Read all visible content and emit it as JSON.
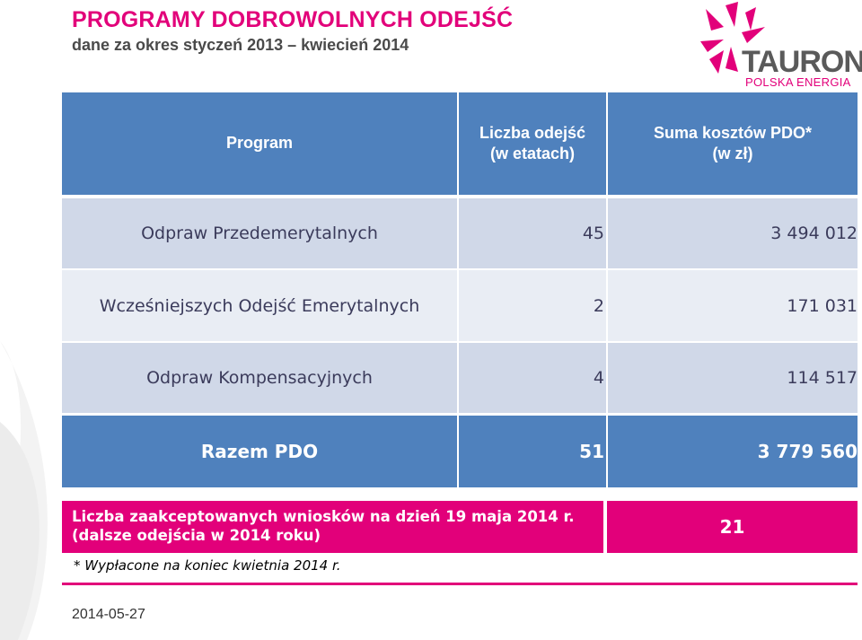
{
  "header": {
    "title": "PROGRAMY DOBROWOLNYCH ODEJŚĆ",
    "subtitle": "dane za okres styczeń 2013 – kwiecień 2014"
  },
  "logo": {
    "name": "TAURON",
    "tagline": "POLSKA ENERGIA"
  },
  "table": {
    "columns": [
      {
        "line1": "Program",
        "line2": ""
      },
      {
        "line1": "Liczba odejść",
        "line2": "(w etatach)"
      },
      {
        "line1": "Suma kosztów PDO*",
        "line2": "(w zł)"
      }
    ],
    "rows": [
      {
        "program": "Odpraw Przedemerytalnych",
        "count": "45",
        "cost": "3 494 012"
      },
      {
        "program": "Wcześniejszych Odejść Emerytalnych",
        "count": "2",
        "cost": "171 031"
      },
      {
        "program": "Odpraw Kompensacyjnych",
        "count": "4",
        "cost": "114 517"
      }
    ],
    "total": {
      "program": "Razem PDO",
      "count": "51",
      "cost": "3 779 560"
    }
  },
  "applications": {
    "line1": "Liczba zaakceptowanych wniosków na dzień 19 maja 2014 r.",
    "line2": "(dalsze odejścia w 2014 roku)",
    "value": "21"
  },
  "footnote": "* Wypłacone na koniec kwietnia 2014  r.",
  "footer": {
    "date": "2014-05-27"
  },
  "colors": {
    "accent": "#e2007a",
    "header_blue": "#4f81bd",
    "row_light": "#e9edf4",
    "row_mid": "#d0d8e8"
  }
}
